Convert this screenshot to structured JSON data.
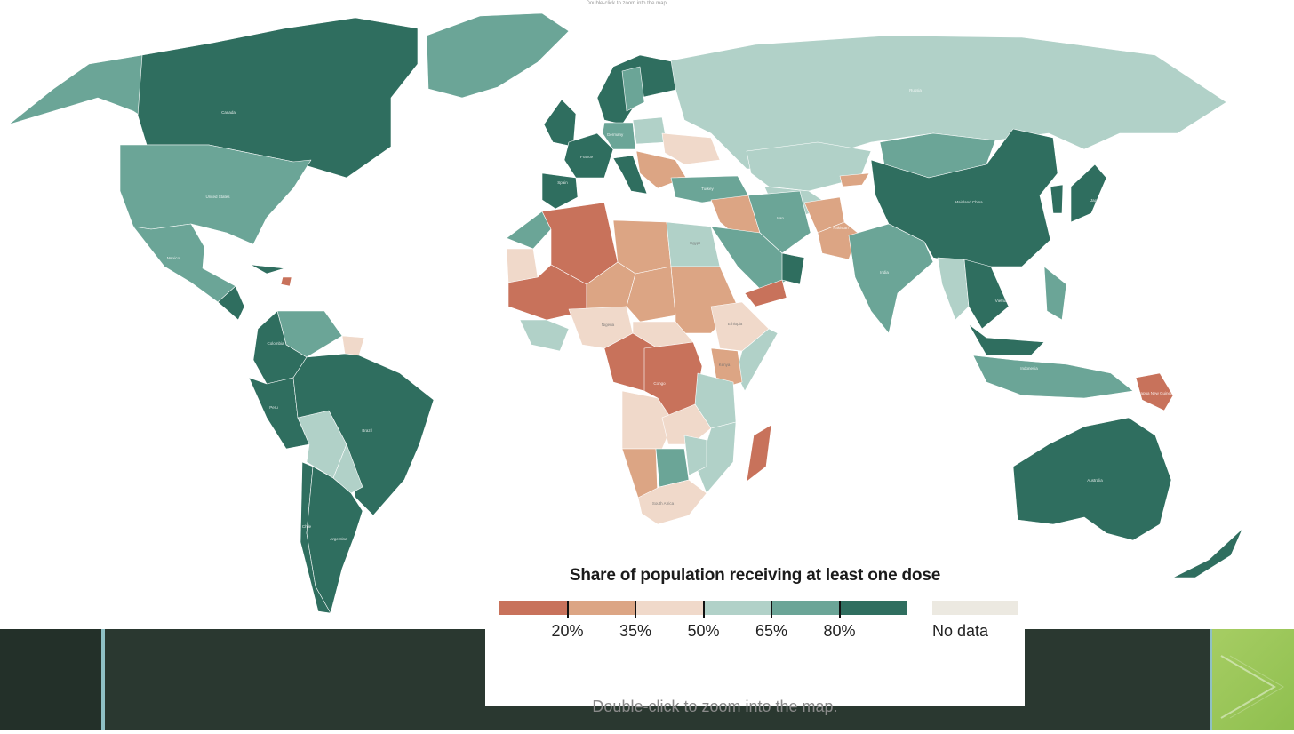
{
  "top_hint": "Double-click to zoom into the map.",
  "legend": {
    "title": "Share of population receiving at least one dose",
    "bins": [
      {
        "color": "#c8725b"
      },
      {
        "color": "#dca584"
      },
      {
        "color": "#f0d9ca"
      },
      {
        "color": "#b1d1c8"
      },
      {
        "color": "#6ba597"
      },
      {
        "color": "#2f6e5f"
      }
    ],
    "ticks": [
      "20%",
      "35%",
      "50%",
      "65%",
      "80%"
    ],
    "no_data_color": "#ece9e1",
    "no_data_label": "No data"
  },
  "footer_hint": "Double-click to zoom into the map.",
  "map_labels": {
    "canada": "Canada",
    "united_states": "United States",
    "mexico": "Mexico",
    "colombia": "Colombia",
    "peru": "Peru",
    "brazil": "Brazil",
    "chile": "Chile",
    "argentina": "Argentina",
    "france": "France",
    "spain": "Spain",
    "germany": "Germany",
    "turkey": "Turkey",
    "russia": "Russia",
    "iran": "Iran",
    "pakistan": "Pakistan",
    "india": "India",
    "mainland_china": "Mainland China",
    "japan": "Japan",
    "vietnam": "Vietnam",
    "indonesia": "Indonesia",
    "papua_new_guinea": "Papua New Guinea",
    "australia": "Australia",
    "egypt": "Egypt",
    "nigeria": "Nigeria",
    "ethiopia": "Ethiopia",
    "kenya": "Kenya",
    "congo": "Congo",
    "south_africa": "South Africa"
  }
}
